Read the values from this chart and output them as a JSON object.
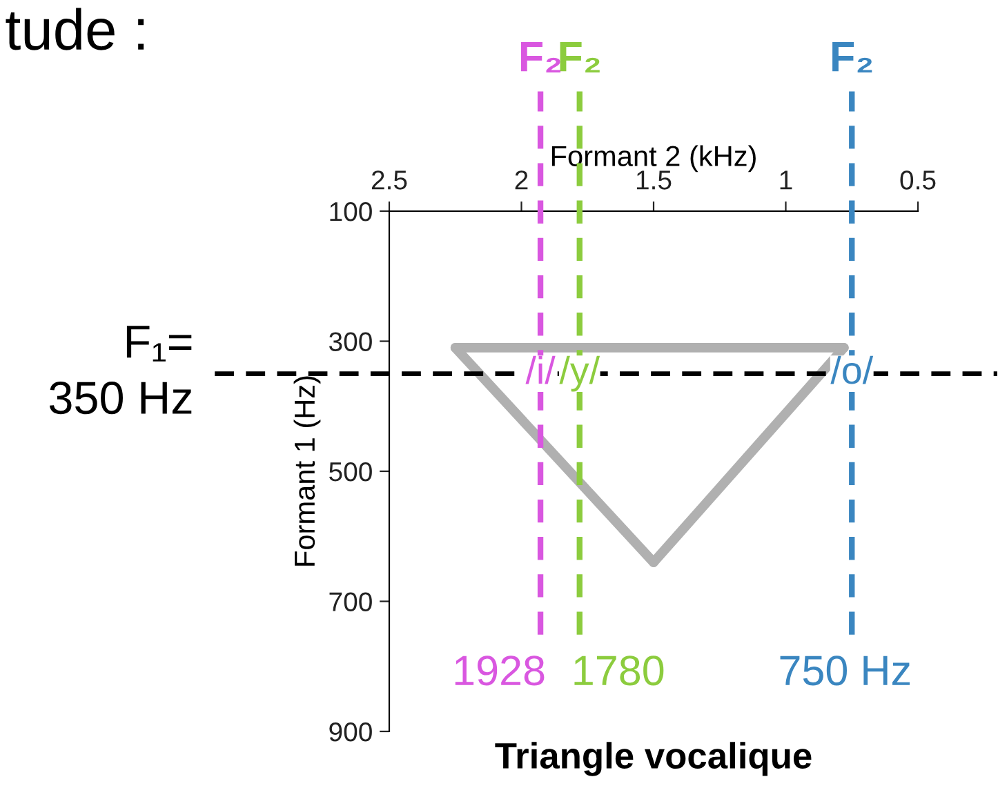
{
  "chart_data": {
    "type": "line",
    "title": "Triangle vocalique",
    "xlabel": "Formant 2 (kHz)",
    "ylabel": "Formant 1 (Hz)",
    "series": [
      {
        "color": "#b0b0b0",
        "x": [
          0.78,
          2.25
        ],
        "values": [
          310,
          310
        ]
      },
      {
        "color": "#b0b0b0",
        "x": [
          0.78,
          1.5
        ],
        "values": [
          310,
          640
        ]
      },
      {
        "color": "#b0b0b0",
        "x": [
          1.5,
          2.25
        ],
        "values": [
          640,
          310
        ]
      }
    ],
    "xlim": [
      2.5,
      0.5
    ],
    "xticks": [
      2.5,
      2,
      1.5,
      1,
      0.5
    ],
    "ylim": [
      900,
      100
    ],
    "yticks": [
      100,
      300,
      500,
      700,
      900
    ],
    "ref_lines": [
      {
        "axis": "x",
        "value": 1.928,
        "label": "F₂",
        "color": "#d957e0",
        "line_style": "dashed"
      },
      {
        "axis": "x",
        "value": 1.78,
        "label": "F₂",
        "color": "#8ccc3e",
        "line_style": "dashed"
      },
      {
        "axis": "x",
        "value": 0.75,
        "label": "F₂",
        "color": "#3a86c0",
        "line_style": "dashed"
      },
      {
        "axis": "y",
        "value": 350,
        "label": "F₁=\n350 Hz",
        "color": "#000000",
        "line_style": "dashed"
      }
    ],
    "annotations": [
      "tude :",
      {
        "text": "/i/",
        "x": 1.928,
        "y": 350
      },
      {
        "text": "/y/",
        "x": 1.78,
        "y": 350
      },
      {
        "text": "/o/",
        "x": 0.75,
        "y": 350
      },
      "1928",
      "1780",
      "750 Hz"
    ],
    "grid": false,
    "legend": false,
    "marker": "none",
    "line_style": "solid"
  }
}
